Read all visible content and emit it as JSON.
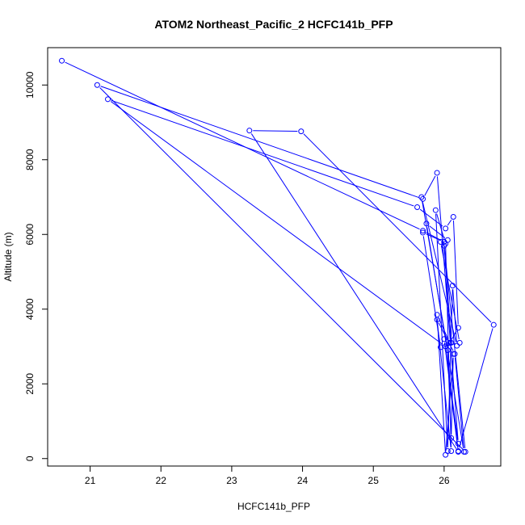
{
  "chart_data": {
    "type": "line",
    "title": "ATOM2 Northeast_Pacific_2 HCFC141b_PFP",
    "xlabel": "HCFC141b_PFP",
    "ylabel": "Altitude (m)",
    "xlim": [
      20.4,
      26.8
    ],
    "ylim": [
      -200,
      11000
    ],
    "xticks": [
      21,
      22,
      23,
      24,
      25,
      26
    ],
    "yticks": [
      0,
      2000,
      4000,
      6000,
      8000,
      10000
    ],
    "series_color": "#0000ff",
    "series": [
      {
        "x": [
          20.6,
          25.7,
          26.0,
          26.1,
          26.0,
          26.3,
          21.1,
          25.7,
          25.9,
          26.2,
          26.0,
          26.2,
          23.25,
          23.98,
          26.7,
          26.2,
          26.02,
          21.25,
          25.62,
          26.02,
          26.13,
          26.2,
          26.08,
          25.9,
          26.02,
          26.13,
          26.1,
          26.05,
          25.68,
          26.18,
          26.12,
          26.05,
          25.88,
          26.02,
          26.1,
          25.9,
          26.15,
          26.28,
          25.75,
          26.05,
          25.95,
          26.22,
          25.95,
          25.7,
          26.0
        ],
        "y": [
          10650,
          6100,
          5800,
          3100,
          5700,
          180,
          10000,
          6950,
          7650,
          400,
          3200,
          180,
          8780,
          8760,
          3580,
          200,
          3000,
          9620,
          6730,
          6160,
          6470,
          3500,
          3100,
          3850,
          100,
          2800,
          550,
          2900,
          7000,
          3020,
          4630,
          200,
          6650,
          5750,
          200,
          3720,
          2800,
          180,
          6290,
          5850,
          5800,
          3100,
          2980,
          6050,
          5800
        ]
      }
    ]
  }
}
